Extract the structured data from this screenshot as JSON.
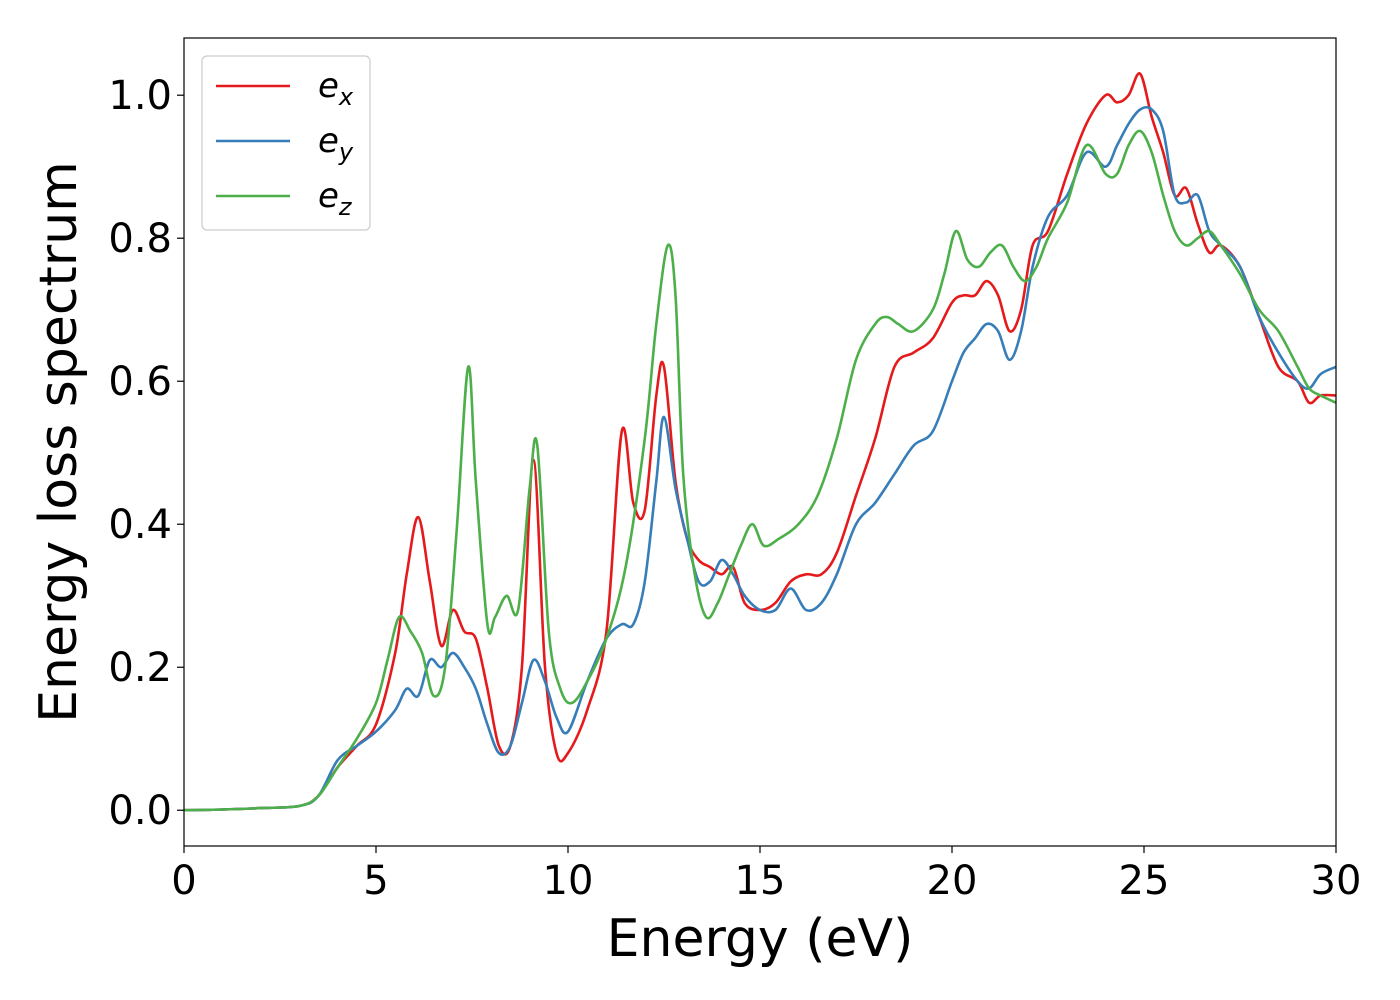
{
  "chart_data": {
    "type": "line",
    "title": "",
    "xlabel": "Energy (eV)",
    "ylabel": "Energy loss spectrum",
    "xlim": [
      0,
      30
    ],
    "ylim": [
      -0.05,
      1.08
    ],
    "xticks": [
      0,
      5,
      10,
      15,
      20,
      25,
      30
    ],
    "yticks": [
      0.0,
      0.2,
      0.4,
      0.6,
      0.8,
      1.0
    ],
    "xtick_labels": [
      "0",
      "5",
      "10",
      "15",
      "20",
      "25",
      "30"
    ],
    "ytick_labels": [
      "0.0",
      "0.2",
      "0.4",
      "0.6",
      "0.8",
      "1.0"
    ],
    "grid": false,
    "legend_position": "top-left",
    "series": [
      {
        "name": "e_x",
        "legend_base": "e",
        "legend_sub": "x",
        "color": "#e41a1c",
        "x": [
          0,
          1,
          2,
          3,
          3.5,
          4,
          4.5,
          5,
          5.5,
          5.8,
          6.1,
          6.4,
          6.7,
          7.0,
          7.3,
          7.6,
          7.9,
          8.2,
          8.5,
          8.8,
          9.1,
          9.4,
          9.7,
          10.0,
          10.5,
          11.0,
          11.4,
          11.7,
          12.0,
          12.3,
          12.5,
          12.8,
          13.1,
          13.4,
          13.7,
          14.0,
          14.3,
          14.6,
          15.0,
          15.4,
          15.8,
          16.2,
          16.6,
          17.0,
          17.5,
          18.0,
          18.5,
          19.0,
          19.5,
          20.0,
          20.3,
          20.6,
          20.9,
          21.2,
          21.5,
          21.8,
          22.1,
          22.5,
          23.0,
          23.5,
          24.0,
          24.3,
          24.6,
          24.9,
          25.2,
          25.5,
          25.8,
          26.1,
          26.4,
          26.7,
          27.0,
          27.5,
          28.0,
          28.5,
          29.0,
          29.3,
          29.6,
          30.0
        ],
        "y": [
          0,
          0.001,
          0.003,
          0.006,
          0.02,
          0.06,
          0.09,
          0.12,
          0.22,
          0.33,
          0.41,
          0.32,
          0.23,
          0.28,
          0.25,
          0.24,
          0.17,
          0.09,
          0.09,
          0.2,
          0.49,
          0.2,
          0.08,
          0.08,
          0.14,
          0.25,
          0.53,
          0.43,
          0.42,
          0.58,
          0.62,
          0.46,
          0.38,
          0.35,
          0.34,
          0.33,
          0.34,
          0.29,
          0.28,
          0.29,
          0.32,
          0.33,
          0.33,
          0.36,
          0.44,
          0.52,
          0.62,
          0.64,
          0.66,
          0.71,
          0.72,
          0.72,
          0.74,
          0.72,
          0.67,
          0.7,
          0.79,
          0.81,
          0.89,
          0.96,
          1.0,
          0.99,
          1.0,
          1.03,
          0.97,
          0.92,
          0.86,
          0.87,
          0.82,
          0.78,
          0.79,
          0.76,
          0.69,
          0.62,
          0.6,
          0.57,
          0.58,
          0.58
        ]
      },
      {
        "name": "e_y",
        "legend_base": "e",
        "legend_sub": "y",
        "color": "#377eb8",
        "x": [
          0,
          1,
          2,
          3,
          3.5,
          4,
          4.5,
          5,
          5.5,
          5.8,
          6.1,
          6.4,
          6.7,
          7.0,
          7.3,
          7.6,
          7.9,
          8.2,
          8.5,
          8.8,
          9.1,
          9.4,
          9.7,
          10.0,
          10.5,
          11.0,
          11.4,
          11.7,
          12.0,
          12.3,
          12.5,
          12.8,
          13.1,
          13.4,
          13.7,
          14.0,
          14.3,
          14.6,
          15.0,
          15.4,
          15.8,
          16.2,
          16.6,
          17.0,
          17.5,
          18.0,
          18.5,
          19.0,
          19.5,
          20.0,
          20.3,
          20.6,
          20.9,
          21.2,
          21.5,
          21.8,
          22.1,
          22.5,
          23.0,
          23.5,
          24.0,
          24.3,
          24.6,
          24.9,
          25.2,
          25.5,
          25.8,
          26.1,
          26.4,
          26.7,
          27.0,
          27.5,
          28.0,
          28.5,
          29.0,
          29.3,
          29.6,
          30.0
        ],
        "y": [
          0,
          0.001,
          0.003,
          0.006,
          0.02,
          0.07,
          0.09,
          0.11,
          0.14,
          0.17,
          0.16,
          0.21,
          0.2,
          0.22,
          0.2,
          0.17,
          0.12,
          0.08,
          0.09,
          0.15,
          0.21,
          0.18,
          0.13,
          0.11,
          0.18,
          0.24,
          0.26,
          0.26,
          0.32,
          0.46,
          0.55,
          0.45,
          0.38,
          0.32,
          0.32,
          0.35,
          0.33,
          0.3,
          0.28,
          0.28,
          0.31,
          0.28,
          0.29,
          0.33,
          0.4,
          0.43,
          0.47,
          0.51,
          0.53,
          0.6,
          0.64,
          0.66,
          0.68,
          0.67,
          0.63,
          0.67,
          0.76,
          0.83,
          0.86,
          0.92,
          0.9,
          0.93,
          0.96,
          0.98,
          0.98,
          0.95,
          0.86,
          0.85,
          0.86,
          0.81,
          0.79,
          0.76,
          0.69,
          0.64,
          0.6,
          0.59,
          0.61,
          0.62
        ]
      },
      {
        "name": "e_z",
        "legend_base": "e",
        "legend_sub": "z",
        "color": "#4daf4a",
        "x": [
          0,
          1,
          2,
          3,
          3.5,
          4,
          4.5,
          5,
          5.3,
          5.6,
          5.9,
          6.2,
          6.5,
          6.8,
          7.1,
          7.4,
          7.6,
          7.9,
          8.1,
          8.4,
          8.7,
          9.0,
          9.2,
          9.5,
          9.8,
          10.1,
          10.5,
          11.0,
          11.5,
          12.0,
          12.3,
          12.6,
          12.8,
          13.0,
          13.3,
          13.6,
          13.9,
          14.2,
          14.5,
          14.8,
          15.1,
          15.5,
          16.0,
          16.5,
          17.0,
          17.5,
          18.0,
          18.3,
          18.6,
          19.0,
          19.5,
          19.8,
          20.1,
          20.4,
          20.7,
          21.0,
          21.3,
          21.6,
          21.9,
          22.2,
          22.5,
          23.0,
          23.5,
          24.0,
          24.3,
          24.6,
          24.9,
          25.2,
          25.5,
          25.8,
          26.1,
          26.4,
          26.7,
          27.0,
          27.5,
          28.0,
          28.5,
          29.0,
          29.3,
          29.6,
          30.0
        ],
        "y": [
          0,
          0.001,
          0.003,
          0.006,
          0.02,
          0.06,
          0.1,
          0.15,
          0.21,
          0.27,
          0.25,
          0.22,
          0.16,
          0.2,
          0.39,
          0.62,
          0.46,
          0.26,
          0.27,
          0.3,
          0.28,
          0.45,
          0.51,
          0.25,
          0.17,
          0.15,
          0.18,
          0.24,
          0.34,
          0.52,
          0.68,
          0.79,
          0.72,
          0.47,
          0.33,
          0.27,
          0.29,
          0.33,
          0.37,
          0.4,
          0.37,
          0.38,
          0.4,
          0.44,
          0.52,
          0.63,
          0.68,
          0.69,
          0.68,
          0.67,
          0.7,
          0.75,
          0.81,
          0.77,
          0.76,
          0.78,
          0.79,
          0.76,
          0.74,
          0.76,
          0.8,
          0.85,
          0.93,
          0.89,
          0.89,
          0.93,
          0.95,
          0.92,
          0.86,
          0.81,
          0.79,
          0.8,
          0.81,
          0.79,
          0.75,
          0.7,
          0.67,
          0.62,
          0.59,
          0.58,
          0.57
        ]
      }
    ]
  }
}
